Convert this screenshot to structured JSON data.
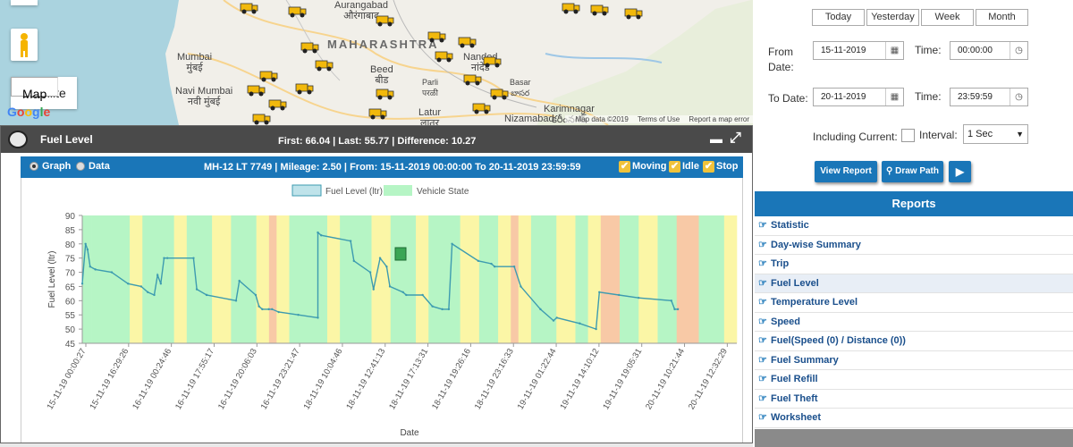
{
  "map": {
    "state_label": "MAHARASHTRA",
    "places": [
      {
        "name": "Mumbai\nमुंबई"
      },
      {
        "name": "Navi Mumbai\nनवी मुंबई"
      },
      {
        "name": "Beed\nबीड"
      },
      {
        "name": "Parli\nपरळी"
      },
      {
        "name": "Latur\nलातूर"
      },
      {
        "name": "Nanded\nनांदेड"
      },
      {
        "name": "Basar\nబాసర"
      },
      {
        "name": "Nizamabad"
      },
      {
        "name": "Karimnagar\nకరీంనగర్"
      },
      {
        "name": "Aurangabad\nऔरंगाबाद"
      }
    ],
    "map_type": {
      "map_label": "Map",
      "satellite_label": "Satellite"
    },
    "google_logo": "Google",
    "footer": {
      "data": "Map data ©2019",
      "terms": "Terms of Use",
      "report": "Report a map error"
    }
  },
  "fuel_panel": {
    "title": "Fuel Level",
    "summary": "First: 66.04 | Last: 55.77 | Difference: 10.27",
    "minimize_icon": "minimize-icon",
    "maximize_icon": "fullscreen-icon",
    "view": {
      "graph_label": "Graph",
      "data_label": "Data",
      "selected": "Graph"
    },
    "vehicle_info": "MH-12 LT 7749 | Mileage: 2.50 | From: 15-11-2019 00:00:00 To 20-11-2019 23:59:59",
    "filters": [
      {
        "label": "Moving",
        "checked": true
      },
      {
        "label": "Idle",
        "checked": true
      },
      {
        "label": "Stop",
        "checked": true
      }
    ]
  },
  "chart_data": {
    "type": "line",
    "xlabel": "Date",
    "ylabel": "Fuel Level (ltr)",
    "ylim": [
      45,
      90
    ],
    "yticks": [
      45,
      50,
      55,
      60,
      65,
      70,
      75,
      80,
      85,
      90
    ],
    "legend": [
      "Fuel Level (ltr)",
      "Vehicle State"
    ],
    "legend_position": "top-center",
    "x_tick_labels": [
      "15-11-19 00:00:27",
      "15-11-19 16:29:26",
      "16-11-19 00:24:46",
      "16-11-19 17:55:17",
      "16-11-19 20:06:03",
      "16-11-19 23:21:47",
      "18-11-19 10:04:46",
      "18-11-19 12:41:13",
      "18-11-19 17:13:31",
      "18-11-19 19:26:16",
      "18-11-19 23:16:33",
      "19-11-19 01:22:44",
      "19-11-19 14:10:12",
      "19-11-19 19:05:31",
      "20-11-19 10:21:44",
      "20-11-19 12:32:29"
    ],
    "x_range": [
      0,
      1
    ],
    "series": [
      {
        "name": "Fuel Level (ltr)",
        "color": "#3d9bb0",
        "x": [
          0,
          0.005,
          0.008,
          0.012,
          0.02,
          0.045,
          0.07,
          0.09,
          0.1,
          0.11,
          0.115,
          0.12,
          0.125,
          0.13,
          0.17,
          0.175,
          0.19,
          0.19,
          0.235,
          0.24,
          0.265,
          0.27,
          0.275,
          0.285,
          0.29,
          0.3,
          0.33,
          0.36,
          0.36,
          0.365,
          0.41,
          0.415,
          0.44,
          0.445,
          0.455,
          0.465,
          0.47,
          0.49,
          0.495,
          0.52,
          0.535,
          0.55,
          0.56,
          0.565,
          0.605,
          0.625,
          0.63,
          0.66,
          0.67,
          0.7,
          0.72,
          0.725,
          0.76,
          0.785,
          0.79,
          0.82,
          0.85,
          0.9,
          0.905,
          0.91
        ],
        "y": [
          66,
          80,
          78,
          72,
          71,
          70,
          66,
          65,
          63,
          62,
          69,
          66,
          75,
          75,
          75,
          64,
          62,
          62,
          60,
          67,
          62,
          58,
          57,
          57,
          57,
          56,
          55,
          54,
          84,
          83,
          81,
          74,
          70,
          64,
          75,
          72,
          65,
          63,
          62,
          62,
          58,
          57,
          57,
          80,
          74,
          73,
          72,
          72,
          65,
          57,
          53,
          54,
          52,
          50,
          63,
          62,
          61,
          60,
          57,
          57
        ]
      },
      {
        "name": "Vehicle State",
        "legend_color": "#b6f5c5",
        "states": [
          "moving",
          "moving",
          "idle",
          "moving",
          "idle",
          "moving",
          "idle",
          "moving",
          "idle",
          "stop",
          "idle",
          "moving",
          "idle",
          "moving",
          "idle",
          "moving",
          "idle",
          "moving",
          "idle",
          "moving",
          "idle",
          "stop",
          "idle",
          "moving",
          "idle",
          "moving",
          "idle",
          "stop",
          "moving",
          "idle",
          "moving",
          "stop",
          "moving",
          "idle"
        ],
        "widths": [
          0.015,
          0.06,
          0.02,
          0.05,
          0.02,
          0.04,
          0.03,
          0.04,
          0.02,
          0.012,
          0.02,
          0.06,
          0.02,
          0.05,
          0.03,
          0.04,
          0.02,
          0.05,
          0.03,
          0.03,
          0.02,
          0.012,
          0.02,
          0.04,
          0.03,
          0.02,
          0.02,
          0.03,
          0.03,
          0.03,
          0.03,
          0.035,
          0.04,
          0.02
        ]
      }
    ],
    "state_colors": {
      "moving": "#b6f5c5",
      "idle": "#fbf6a6",
      "stop": "#f8c9a6"
    },
    "fill_marker_icon": "fuel-pump-icon"
  },
  "filter_panel": {
    "quick_ranges": [
      "Today",
      "Yesterday",
      "Week",
      "Month"
    ],
    "from_date_label": "From\nDate:",
    "from_date": "15-11-2019",
    "from_time_label": "Time:",
    "from_time": "00:00:00",
    "to_date_label": "To Date:",
    "to_date": "20-11-2019",
    "to_time_label": "Time:",
    "to_time": "23:59:59",
    "including_current_label": "Including Current:",
    "interval_label": "Interval:",
    "interval_value": "1 Sec",
    "view_report_label": "View Report",
    "draw_path_label": "Draw Path",
    "play_icon": "play-icon"
  },
  "reports": {
    "title": "Reports",
    "items": [
      "Statistic",
      "Day-wise Summary",
      "Trip",
      "Fuel Level",
      "Temperature Level",
      "Speed",
      "Fuel(Speed (0) / Distance (0))",
      "Fuel Summary",
      "Fuel Refill",
      "Fuel Theft",
      "Worksheet"
    ],
    "active": "Fuel Level"
  }
}
